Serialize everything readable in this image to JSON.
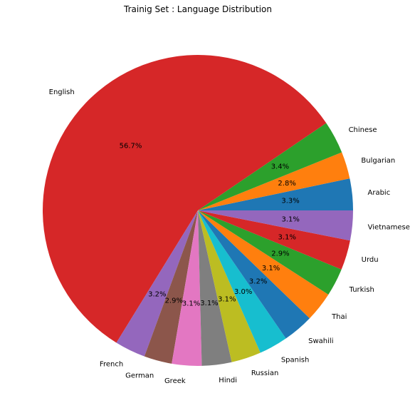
{
  "chart_data": {
    "type": "pie",
    "title": "Trainig Set : Language Distribution",
    "start_angle_deg": 0,
    "direction": "counterclockwise",
    "slices": [
      {
        "label": "Arabic",
        "value": 3.3,
        "pct_label": "3.3%",
        "color": "#1f77b4"
      },
      {
        "label": "Bulgarian",
        "value": 2.8,
        "pct_label": "2.8%",
        "color": "#ff7f0e"
      },
      {
        "label": "Chinese",
        "value": 3.4,
        "pct_label": "3.4%",
        "color": "#2ca02c"
      },
      {
        "label": "English",
        "value": 56.7,
        "pct_label": "56.7%",
        "color": "#d62728"
      },
      {
        "label": "French",
        "value": 3.2,
        "pct_label": "3.2%",
        "color": "#9467bd"
      },
      {
        "label": "German",
        "value": 2.9,
        "pct_label": "2.9%",
        "color": "#8c564b"
      },
      {
        "label": "Greek",
        "value": 3.1,
        "pct_label": "3.1%",
        "color": "#e377c2"
      },
      {
        "label": "Hindi",
        "value": 3.1,
        "pct_label": "3.1%",
        "color": "#7f7f7f"
      },
      {
        "label": "Russian",
        "value": 3.1,
        "pct_label": "3.1%",
        "color": "#bcbd22"
      },
      {
        "label": "Spanish",
        "value": 3.0,
        "pct_label": "3.0%",
        "color": "#17becf"
      },
      {
        "label": "Swahili",
        "value": 3.2,
        "pct_label": "3.2%",
        "color": "#1f77b4"
      },
      {
        "label": "Thai",
        "value": 3.1,
        "pct_label": "3.1%",
        "color": "#ff7f0e"
      },
      {
        "label": "Turkish",
        "value": 2.9,
        "pct_label": "2.9%",
        "color": "#2ca02c"
      },
      {
        "label": "Urdu",
        "value": 3.1,
        "pct_label": "3.1%",
        "color": "#d62728"
      },
      {
        "label": "Vietnamese",
        "value": 3.1,
        "pct_label": "3.1%",
        "color": "#9467bd"
      }
    ]
  }
}
